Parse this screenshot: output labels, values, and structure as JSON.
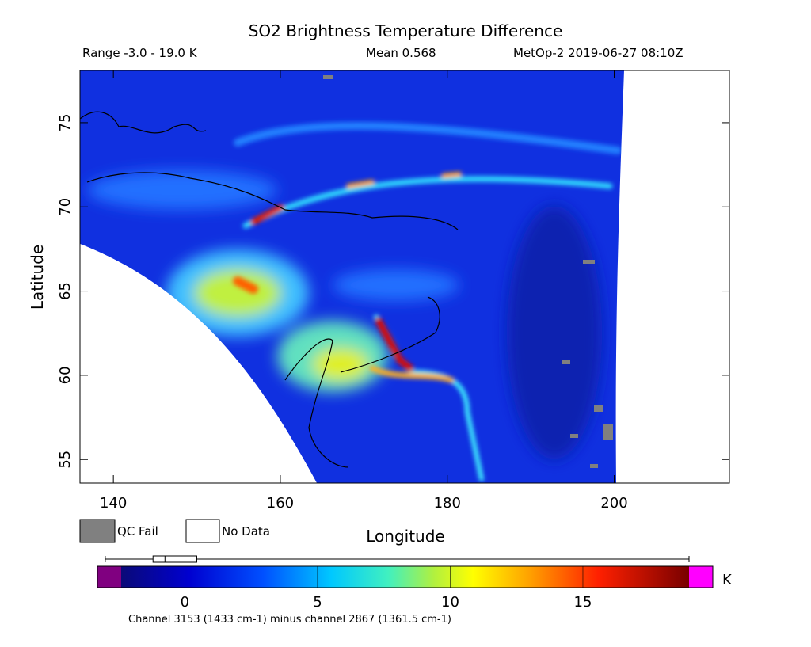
{
  "chart_data": {
    "type": "map",
    "title": "SO2 Brightness Temperature Difference",
    "subtitle_left": "Range -3.0 - 19.0 K",
    "subtitle_center": "Mean 0.568",
    "subtitle_right": "MetOp-2 2019-06-27 08:10Z",
    "x_label": "Longitude",
    "y_label": "Latitude",
    "xlim": [
      136.0,
      213.8
    ],
    "xticks": [
      140,
      160,
      180,
      200
    ],
    "ylim": [
      53.6,
      78.1
    ],
    "yticks": [
      55,
      60,
      65,
      70,
      75
    ],
    "legend": [
      "QC Fail",
      "No Data"
    ],
    "colorbar": {
      "lim": [
        -2.4,
        19.0
      ],
      "ticks": [
        0,
        5,
        10,
        15
      ],
      "unit": "K",
      "boxplot": {
        "min": -3.0,
        "q1": -1.2,
        "median": -0.75,
        "q3": 0.45,
        "max": 19.0
      }
    },
    "caption": "Channel 3153 (1433 cm-1) minus channel 2867 (1361.5 cm-1)"
  }
}
